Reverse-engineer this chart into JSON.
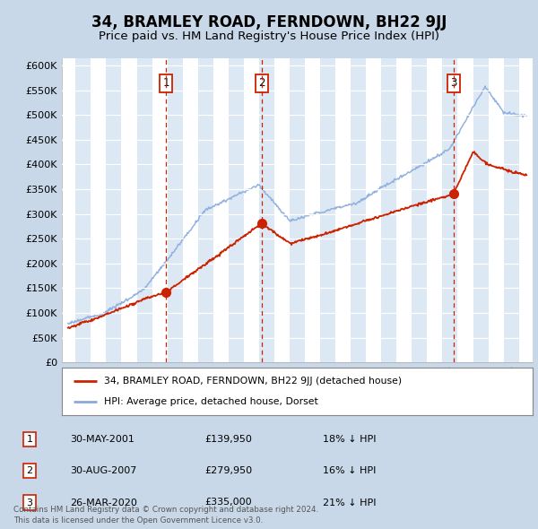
{
  "title": "34, BRAMLEY ROAD, FERNDOWN, BH22 9JJ",
  "subtitle": "Price paid vs. HM Land Registry's House Price Index (HPI)",
  "ylabel_ticks": [
    "£0",
    "£50K",
    "£100K",
    "£150K",
    "£200K",
    "£250K",
    "£300K",
    "£350K",
    "£400K",
    "£450K",
    "£500K",
    "£550K",
    "£600K"
  ],
  "ytick_values": [
    0,
    50000,
    100000,
    150000,
    200000,
    250000,
    300000,
    350000,
    400000,
    450000,
    500000,
    550000,
    600000
  ],
  "ylim": [
    0,
    615000
  ],
  "xlim_start": 1994.6,
  "xlim_end": 2025.4,
  "title_fontsize": 12,
  "subtitle_fontsize": 9.5,
  "background_color": "#c8d8e8",
  "plot_bg_color": "#ffffff",
  "chart_fill_color": "#dce8f4",
  "legend_label_red": "34, BRAMLEY ROAD, FERNDOWN, BH22 9JJ (detached house)",
  "legend_label_blue": "HPI: Average price, detached house, Dorset",
  "transactions": [
    {
      "num": 1,
      "date": "30-MAY-2001",
      "price": 139950,
      "year": 2001.42,
      "label": "18% ↓ HPI"
    },
    {
      "num": 2,
      "date": "30-AUG-2007",
      "price": 279950,
      "year": 2007.66,
      "label": "16% ↓ HPI"
    },
    {
      "num": 3,
      "date": "26-MAR-2020",
      "price": 335000,
      "year": 2020.23,
      "label": "21% ↓ HPI"
    }
  ],
  "footer": "Contains HM Land Registry data © Crown copyright and database right 2024.\nThis data is licensed under the Open Government Licence v3.0.",
  "red_color": "#cc2200",
  "blue_color": "#88aadd",
  "marker_fill": "#cc2200",
  "grid_color": "#c0d0e0"
}
